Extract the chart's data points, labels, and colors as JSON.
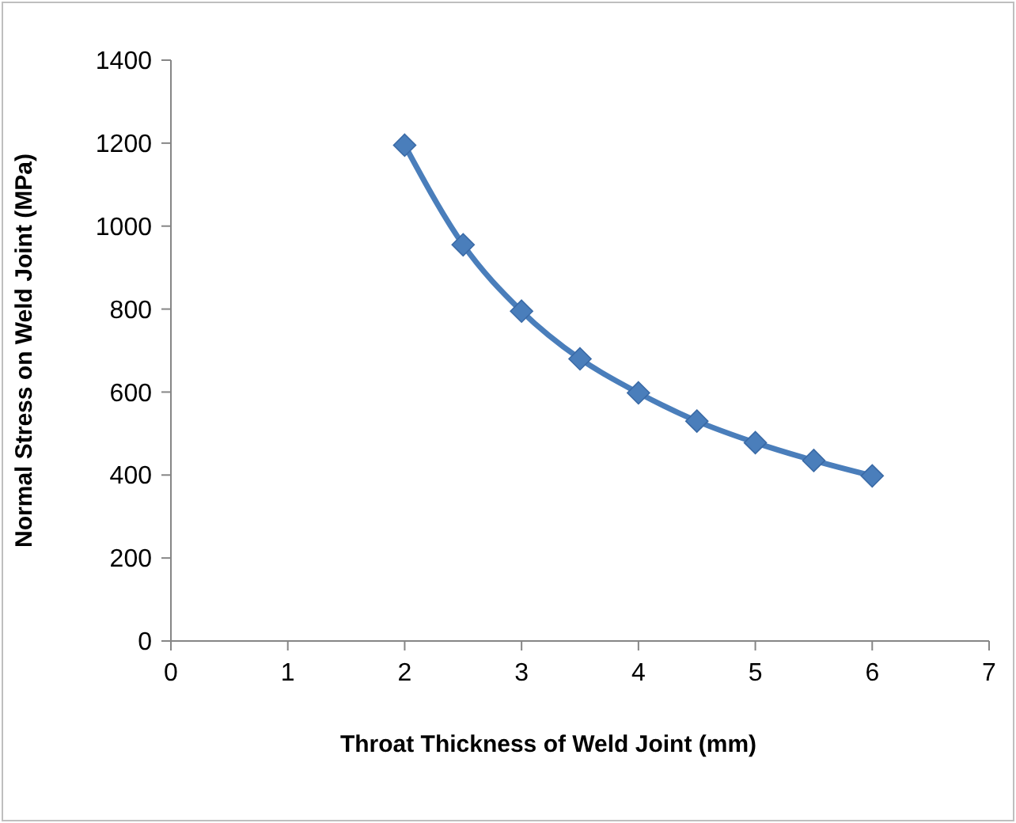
{
  "chart_data": {
    "type": "line",
    "xlabel": "Throat Thickness of Weld Joint (mm)",
    "ylabel": "Normal Stress on Weld Joint  (MPa)",
    "x": [
      2,
      2.5,
      3,
      3.5,
      4,
      4.5,
      5,
      5.5,
      6
    ],
    "series": [
      {
        "color": "#4a7ebb",
        "values": [
          1195,
          955,
          795,
          680,
          598,
          530,
          478,
          435,
          398
        ]
      }
    ],
    "xlim": [
      0,
      7
    ],
    "xticks": [
      0,
      1,
      2,
      3,
      4,
      5,
      6,
      7
    ],
    "ylim": [
      0,
      1400
    ],
    "yticks": [
      0,
      200,
      400,
      600,
      800,
      1000,
      1200,
      1400
    ],
    "grid": false,
    "marker": "diamond",
    "line_style": "solid"
  }
}
